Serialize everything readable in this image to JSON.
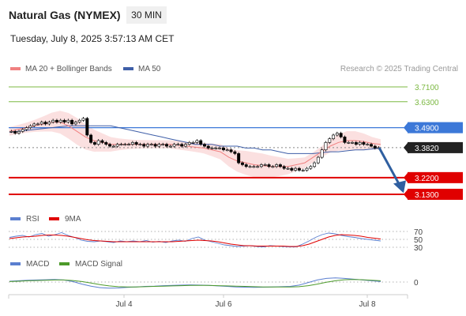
{
  "header": {
    "instrument": "Natural Gas (NYMEX)",
    "timeframe": "30 MIN",
    "datetime": "Tuesday, July 8, 2025 3:57:13 AM CET",
    "credit": "Research © 2025 Trading Central"
  },
  "colors": {
    "ma20": "#f08080",
    "bollinger": "#f7c6c6",
    "ma50": "#3f5fa8",
    "resistance": "#7cb842",
    "blue_level": "#3c78d8",
    "support": "#e00000",
    "current": "#222222",
    "arrow": "#2f5fa0",
    "candle_up": "#000000",
    "candle_down": "#000000",
    "rsi": "#5b7fd0",
    "rsi_ma": "#e00000",
    "macd": "#5b7fd0",
    "macd_signal": "#4c9a2a"
  },
  "chart_data": [
    {
      "type": "line",
      "panel": "price",
      "legend": [
        {
          "label": "MA 20 + Bollinger Bands",
          "color": "#f08080"
        },
        {
          "label": "MA 50",
          "color": "#3f5fa8"
        }
      ],
      "x_ticks": [
        "Jul 4",
        "Jul 6",
        "Jul 8"
      ],
      "ylim": [
        3.07,
        3.77
      ],
      "levels": [
        {
          "value": 3.71,
          "label": "3.7100",
          "kind": "resistance"
        },
        {
          "value": 3.63,
          "label": "3.6300",
          "kind": "resistance"
        },
        {
          "value": 3.49,
          "label": "3.4900",
          "kind": "blue"
        },
        {
          "value": 3.382,
          "label": "3.3820",
          "kind": "current"
        },
        {
          "value": 3.22,
          "label": "3.2200",
          "kind": "support"
        },
        {
          "value": 3.13,
          "label": "3.1300",
          "kind": "support"
        }
      ],
      "close_series": [
        3.47,
        3.46,
        3.47,
        3.48,
        3.49,
        3.5,
        3.51,
        3.51,
        3.52,
        3.51,
        3.52,
        3.53,
        3.52,
        3.53,
        3.52,
        3.53,
        3.51,
        3.52,
        3.53,
        3.54,
        3.45,
        3.41,
        3.4,
        3.42,
        3.41,
        3.4,
        3.39,
        3.39,
        3.4,
        3.4,
        3.4,
        3.4,
        3.41,
        3.4,
        3.4,
        3.39,
        3.4,
        3.4,
        3.39,
        3.4,
        3.4,
        3.39,
        3.39,
        3.4,
        3.4,
        3.39,
        3.4,
        3.41,
        3.41,
        3.42,
        3.4,
        3.39,
        3.38,
        3.38,
        3.38,
        3.38,
        3.37,
        3.37,
        3.36,
        3.35,
        3.3,
        3.29,
        3.28,
        3.28,
        3.28,
        3.28,
        3.29,
        3.29,
        3.28,
        3.28,
        3.29,
        3.28,
        3.27,
        3.27,
        3.26,
        3.27,
        3.26,
        3.26,
        3.27,
        3.28,
        3.3,
        3.33,
        3.37,
        3.41,
        3.43,
        3.45,
        3.46,
        3.44,
        3.41,
        3.41,
        3.41,
        3.4,
        3.41,
        3.4,
        3.4,
        3.39,
        3.38,
        3.382
      ],
      "ma50_series": [
        3.465,
        3.47,
        3.475,
        3.48,
        3.485,
        3.49,
        3.495,
        3.5,
        3.5,
        3.5,
        3.5,
        3.5,
        3.5,
        3.49,
        3.48,
        3.47,
        3.46,
        3.45,
        3.44,
        3.43,
        3.42,
        3.41,
        3.4,
        3.4,
        3.4,
        3.39,
        3.39,
        3.39,
        3.38,
        3.38,
        3.37,
        3.37,
        3.36,
        3.35,
        3.35,
        3.35,
        3.35,
        3.355,
        3.36,
        3.36,
        3.365,
        3.37,
        3.37,
        3.375,
        3.38
      ],
      "ma20_series": [
        3.47,
        3.48,
        3.49,
        3.5,
        3.51,
        3.52,
        3.52,
        3.5,
        3.47,
        3.44,
        3.42,
        3.41,
        3.4,
        3.4,
        3.4,
        3.4,
        3.4,
        3.4,
        3.4,
        3.4,
        3.395,
        3.39,
        3.385,
        3.38,
        3.37,
        3.36,
        3.33,
        3.31,
        3.3,
        3.29,
        3.285,
        3.28,
        3.28,
        3.28,
        3.29,
        3.3,
        3.33,
        3.36,
        3.39,
        3.41,
        3.42,
        3.42,
        3.415,
        3.405,
        3.4
      ]
    },
    {
      "type": "line",
      "panel": "rsi",
      "legend": [
        {
          "label": "RSI",
          "color": "#5b7fd0"
        },
        {
          "label": "9MA",
          "color": "#e00000"
        }
      ],
      "ylim": [
        20,
        80
      ],
      "levels": [
        {
          "value": 70,
          "label": "70"
        },
        {
          "value": 50,
          "label": "50"
        },
        {
          "value": 30,
          "label": "30"
        }
      ],
      "series": [
        {
          "name": "RSI",
          "values": [
            55,
            58,
            60,
            56,
            62,
            65,
            58,
            62,
            67,
            60,
            55,
            48,
            45,
            44,
            46,
            44,
            42,
            46,
            44,
            46,
            44,
            47,
            43,
            45,
            42,
            46,
            48,
            45,
            52,
            56,
            48,
            44,
            40,
            36,
            34,
            32,
            33,
            34,
            32,
            31,
            34,
            33,
            32,
            31,
            31,
            38,
            46,
            55,
            62,
            66,
            64,
            60,
            57,
            55,
            52,
            50,
            48,
            46
          ]
        },
        {
          "name": "9MA",
          "values": [
            52,
            54,
            56,
            57,
            58,
            60,
            61,
            61,
            60,
            58,
            55,
            52,
            49,
            47,
            46,
            45,
            44,
            44,
            44,
            44,
            44,
            44,
            44,
            44,
            44,
            44,
            45,
            46,
            47,
            48,
            47,
            46,
            44,
            41,
            38,
            36,
            34,
            34,
            33,
            33,
            33,
            33,
            33,
            32,
            32,
            34,
            38,
            44,
            50,
            56,
            60,
            62,
            61,
            60,
            58,
            55,
            53,
            51
          ]
        }
      ]
    },
    {
      "type": "line",
      "panel": "macd",
      "legend": [
        {
          "label": "MACD",
          "color": "#5b7fd0"
        },
        {
          "label": "MACD Signal",
          "color": "#4c9a2a"
        }
      ],
      "ylim": [
        -0.04,
        0.04
      ],
      "levels": [
        {
          "value": 0,
          "label": "0"
        }
      ],
      "series": [
        {
          "name": "MACD",
          "values": [
            0.003,
            0.005,
            0.007,
            0.008,
            0.009,
            0.01,
            0.008,
            0.002,
            -0.008,
            -0.016,
            -0.022,
            -0.024,
            -0.023,
            -0.021,
            -0.019,
            -0.017,
            -0.016,
            -0.014,
            -0.013,
            -0.012,
            -0.011,
            -0.012,
            -0.013,
            -0.015,
            -0.017,
            -0.019,
            -0.02,
            -0.021,
            -0.02,
            -0.019,
            -0.018,
            -0.017,
            -0.012,
            -0.002,
            0.008,
            0.014,
            0.016,
            0.014,
            0.011,
            0.008,
            0.005,
            0.002
          ]
        },
        {
          "name": "MACD Signal",
          "values": [
            0.002,
            0.003,
            0.005,
            0.006,
            0.007,
            0.008,
            0.008,
            0.006,
            0.002,
            -0.004,
            -0.01,
            -0.015,
            -0.018,
            -0.019,
            -0.019,
            -0.018,
            -0.017,
            -0.016,
            -0.015,
            -0.014,
            -0.013,
            -0.013,
            -0.013,
            -0.014,
            -0.015,
            -0.016,
            -0.017,
            -0.018,
            -0.019,
            -0.019,
            -0.019,
            -0.019,
            -0.018,
            -0.014,
            -0.008,
            -0.001,
            0.005,
            0.009,
            0.01,
            0.009,
            0.007,
            0.005
          ]
        }
      ]
    }
  ]
}
